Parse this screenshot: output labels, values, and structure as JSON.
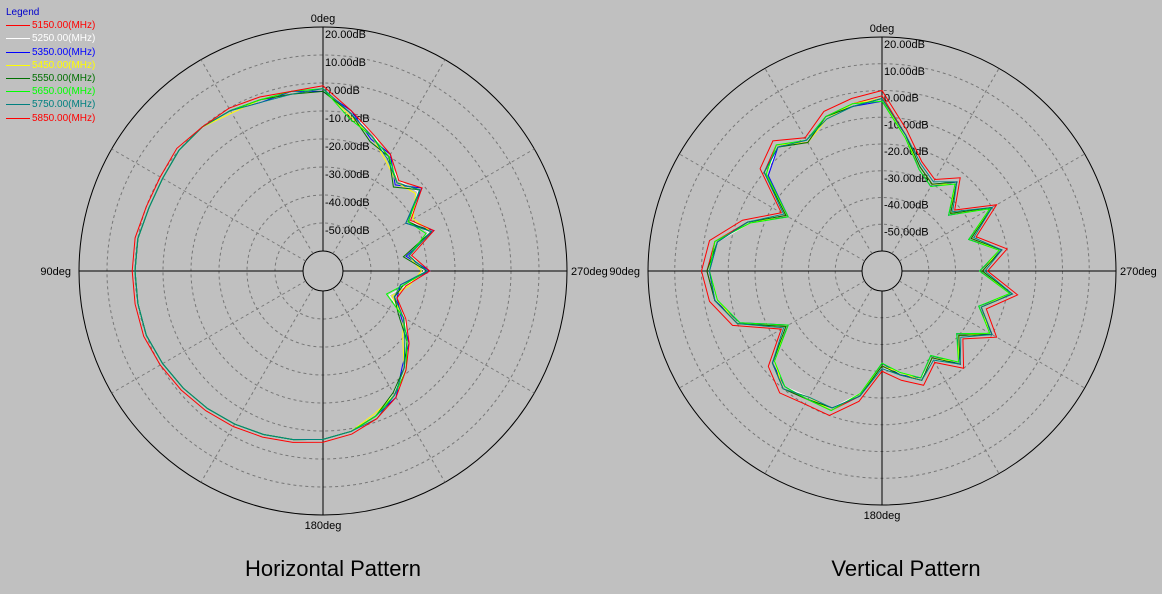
{
  "legend": {
    "title": "Legend",
    "items": [
      {
        "label": "5150.00(MHz)",
        "color": "#ff0000"
      },
      {
        "label": "5250.00(MHz)",
        "color": "#ffffff"
      },
      {
        "label": "5350.00(MHz)",
        "color": "#0000ff"
      },
      {
        "label": "5450.00(MHz)",
        "color": "#ffff00"
      },
      {
        "label": "5550.00(MHz)",
        "color": "#007000"
      },
      {
        "label": "5650.00(MHz)",
        "color": "#00ff00"
      },
      {
        "label": "5750.00(MHz)",
        "color": "#008080"
      },
      {
        "label": "5850.00(MHz)",
        "color": "#ff0000"
      }
    ]
  },
  "chart_data": [
    {
      "type": "polar-line",
      "title": "Horizontal Pattern",
      "angle_labels": [
        "0deg",
        "90deg",
        "180deg",
        "270deg"
      ],
      "radial_range_db": [
        -60,
        20
      ],
      "radial_ticks": [
        "20.00dB",
        "10.00dB",
        "0.00dB",
        "-10.00dB",
        "-20.00dB",
        "-30.00dB",
        "-40.00dB",
        "-50.00dB"
      ],
      "grid": true,
      "series_angles_deg": [
        0,
        10,
        20,
        30,
        40,
        50,
        60,
        70,
        80,
        90,
        100,
        110,
        120,
        130,
        140,
        150,
        160,
        170,
        180,
        190,
        200,
        210,
        220,
        230,
        240,
        250,
        260,
        270,
        280,
        290,
        300,
        310,
        320,
        330,
        340,
        350
      ],
      "series": [
        {
          "name": "5150.00(MHz)",
          "values_db": [
            -2,
            -3,
            -2,
            -1,
            0,
            0,
            -1,
            -1,
            0,
            0,
            0,
            0,
            -1,
            -2,
            -3,
            -4,
            -5,
            -6,
            -7,
            -9,
            -12,
            -16,
            -22,
            -28,
            -34,
            -40,
            -38,
            -30,
            -36,
            -26,
            -32,
            -22,
            -26,
            -20,
            -16,
            -10
          ]
        },
        {
          "name": "5250.00(MHz)",
          "values_db": [
            -2,
            -3,
            -3,
            -1,
            0,
            0,
            -1,
            -1,
            0,
            0,
            0,
            0,
            -1,
            -2,
            -3,
            -4,
            -5,
            -6,
            -7,
            -9,
            -11,
            -17,
            -21,
            -29,
            -33,
            -42,
            -37,
            -31,
            -35,
            -27,
            -31,
            -23,
            -25,
            -21,
            -15,
            -10
          ]
        },
        {
          "name": "5350.00(MHz)",
          "values_db": [
            -3,
            -2,
            -3,
            -1,
            0,
            0,
            -1,
            -1,
            0,
            0,
            0,
            0,
            -1,
            -2,
            -3,
            -4,
            -5,
            -6,
            -7,
            -9,
            -12,
            -15,
            -23,
            -27,
            -35,
            -39,
            -39,
            -29,
            -37,
            -25,
            -33,
            -21,
            -27,
            -19,
            -17,
            -9
          ]
        },
        {
          "name": "5450.00(MHz)",
          "values_db": [
            -2,
            -3,
            -2,
            -2,
            0,
            0,
            -1,
            -1,
            0,
            0,
            0,
            0,
            -1,
            -2,
            -3,
            -4,
            -5,
            -6,
            -7,
            -9,
            -13,
            -16,
            -22,
            -30,
            -34,
            -41,
            -36,
            -32,
            -36,
            -26,
            -30,
            -24,
            -26,
            -22,
            -16,
            -11
          ]
        },
        {
          "name": "5550.00(MHz)",
          "values_db": [
            -3,
            -3,
            -2,
            -1,
            0,
            0,
            -1,
            -1,
            0,
            0,
            0,
            0,
            -1,
            -2,
            -3,
            -4,
            -5,
            -6,
            -7,
            -9,
            -12,
            -17,
            -22,
            -28,
            -36,
            -40,
            -38,
            -30,
            -38,
            -26,
            -32,
            -22,
            -28,
            -20,
            -18,
            -10
          ]
        },
        {
          "name": "5650.00(MHz)",
          "values_db": [
            -2,
            -2,
            -2,
            -1,
            0,
            0,
            -1,
            -1,
            0,
            0,
            0,
            0,
            -1,
            -2,
            -3,
            -4,
            -5,
            -6,
            -7,
            -9,
            -12,
            -16,
            -21,
            -28,
            -34,
            -43,
            -38,
            -30,
            -36,
            -28,
            -32,
            -22,
            -26,
            -20,
            -16,
            -12
          ]
        },
        {
          "name": "5750.00(MHz)",
          "values_db": [
            -2,
            -3,
            -3,
            -1,
            0,
            0,
            -1,
            -1,
            0,
            0,
            0,
            0,
            -1,
            -2,
            -3,
            -4,
            -5,
            -6,
            -7,
            -9,
            -11,
            -16,
            -22,
            -29,
            -34,
            -40,
            -39,
            -30,
            -36,
            -26,
            -33,
            -22,
            -26,
            -21,
            -16,
            -10
          ]
        },
        {
          "name": "5850.00(MHz)",
          "values_db": [
            -1,
            -2,
            -1,
            0,
            0,
            1,
            0,
            0,
            1,
            1,
            1,
            1,
            0,
            -1,
            -2,
            -3,
            -4,
            -5,
            -6,
            -8,
            -11,
            -15,
            -21,
            -27,
            -33,
            -39,
            -37,
            -29,
            -35,
            -25,
            -31,
            -21,
            -25,
            -19,
            -15,
            -9
          ]
        }
      ]
    },
    {
      "type": "polar-line",
      "title": "Vertical Pattern",
      "angle_labels": [
        "0deg",
        "90deg",
        "180deg",
        "270deg"
      ],
      "radial_range_db": [
        -60,
        20
      ],
      "radial_ticks": [
        "20.00dB",
        "10.00dB",
        "0.00dB",
        "-10.00dB",
        "-20.00dB",
        "-30.00dB",
        "-40.00dB",
        "-50.00dB"
      ],
      "grid": true,
      "series_angles_deg": [
        0,
        10,
        20,
        30,
        40,
        50,
        60,
        70,
        80,
        90,
        100,
        110,
        120,
        130,
        140,
        150,
        160,
        170,
        180,
        190,
        200,
        210,
        220,
        230,
        240,
        250,
        260,
        270,
        280,
        290,
        300,
        310,
        320,
        330,
        340,
        350
      ],
      "series": [
        {
          "name": "5150.00(MHz)",
          "values_db": [
            -2,
            -4,
            -6,
            -12,
            -6,
            -10,
            -26,
            -14,
            -4,
            -2,
            -4,
            -10,
            -26,
            -14,
            -10,
            -12,
            -12,
            -20,
            -32,
            -28,
            -24,
            -30,
            -22,
            -30,
            -20,
            -28,
            -18,
            -30,
            -22,
            -32,
            -20,
            -34,
            -24,
            -30,
            -26,
            -16
          ]
        },
        {
          "name": "5250.00(MHz)",
          "values_db": [
            -3,
            -5,
            -7,
            -11,
            -7,
            -11,
            -25,
            -15,
            -5,
            -3,
            -5,
            -11,
            -25,
            -15,
            -11,
            -13,
            -13,
            -21,
            -31,
            -29,
            -25,
            -29,
            -23,
            -29,
            -21,
            -29,
            -19,
            -29,
            -23,
            -31,
            -21,
            -33,
            -25,
            -29,
            -25,
            -17
          ]
        },
        {
          "name": "5350.00(MHz)",
          "values_db": [
            -4,
            -5,
            -6,
            -11,
            -7,
            -12,
            -27,
            -14,
            -5,
            -3,
            -4,
            -11,
            -27,
            -14,
            -11,
            -12,
            -13,
            -20,
            -33,
            -28,
            -25,
            -31,
            -22,
            -31,
            -20,
            -29,
            -18,
            -31,
            -22,
            -33,
            -20,
            -35,
            -24,
            -31,
            -27,
            -16
          ]
        },
        {
          "name": "5450.00(MHz)",
          "values_db": [
            -3,
            -4,
            -7,
            -12,
            -6,
            -11,
            -26,
            -15,
            -4,
            -3,
            -5,
            -10,
            -26,
            -15,
            -10,
            -13,
            -12,
            -21,
            -32,
            -29,
            -24,
            -30,
            -23,
            -30,
            -21,
            -28,
            -19,
            -30,
            -23,
            -32,
            -21,
            -34,
            -25,
            -30,
            -26,
            -17
          ]
        },
        {
          "name": "5550.00(MHz)",
          "values_db": [
            -3,
            -5,
            -6,
            -12,
            -7,
            -10,
            -26,
            -14,
            -5,
            -2,
            -4,
            -10,
            -26,
            -14,
            -10,
            -12,
            -13,
            -20,
            -32,
            -28,
            -24,
            -30,
            -22,
            -30,
            -20,
            -28,
            -18,
            -30,
            -22,
            -32,
            -20,
            -34,
            -24,
            -30,
            -26,
            -16
          ]
        },
        {
          "name": "5650.00(MHz)",
          "values_db": [
            -4,
            -4,
            -6,
            -11,
            -6,
            -11,
            -27,
            -15,
            -4,
            -3,
            -5,
            -11,
            -27,
            -15,
            -11,
            -12,
            -12,
            -21,
            -33,
            -29,
            -25,
            -31,
            -23,
            -31,
            -21,
            -29,
            -19,
            -31,
            -23,
            -33,
            -21,
            -35,
            -25,
            -31,
            -27,
            -17
          ]
        },
        {
          "name": "5750.00(MHz)",
          "values_db": [
            -3,
            -5,
            -7,
            -11,
            -7,
            -10,
            -25,
            -14,
            -5,
            -3,
            -4,
            -10,
            -25,
            -14,
            -10,
            -13,
            -13,
            -20,
            -31,
            -28,
            -24,
            -29,
            -22,
            -29,
            -20,
            -28,
            -18,
            -29,
            -22,
            -31,
            -20,
            -33,
            -24,
            -29,
            -25,
            -16
          ]
        },
        {
          "name": "5850.00(MHz)",
          "values_db": [
            0,
            -2,
            -4,
            -10,
            -4,
            -8,
            -24,
            -12,
            -2,
            0,
            -2,
            -8,
            -24,
            -12,
            -8,
            -10,
            -10,
            -18,
            -30,
            -26,
            -22,
            -28,
            -20,
            -28,
            -18,
            -26,
            -16,
            -28,
            -20,
            -30,
            -18,
            -32,
            -22,
            -28,
            -24,
            -14
          ]
        }
      ]
    }
  ]
}
